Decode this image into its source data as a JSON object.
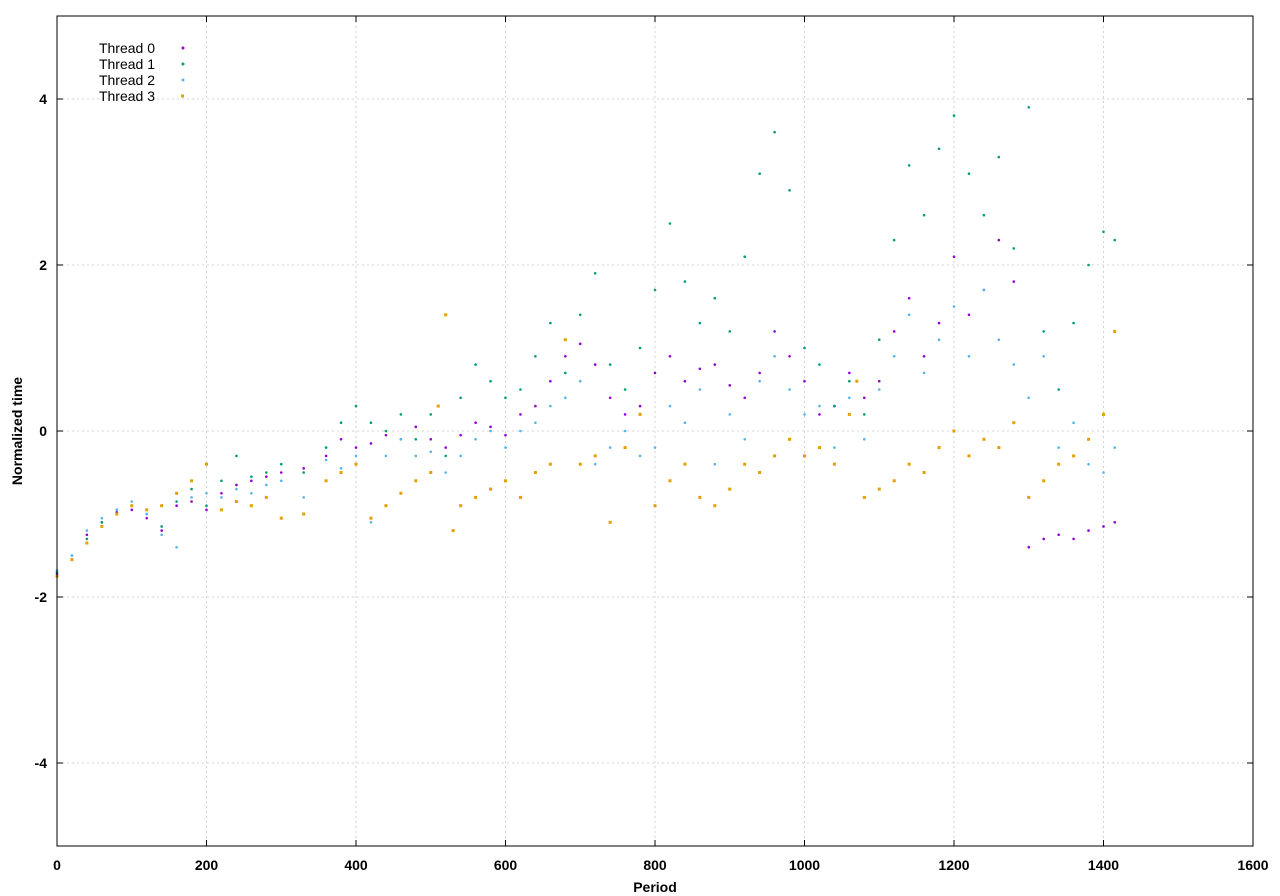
{
  "chart_data": {
    "type": "scatter",
    "title": "",
    "xlabel": "Period",
    "ylabel": "Normalized time",
    "xlim": [
      0,
      1600
    ],
    "ylim": [
      -5,
      5
    ],
    "x_ticks": [
      0,
      200,
      400,
      600,
      800,
      1000,
      1200,
      1400,
      1600
    ],
    "y_ticks": [
      -4,
      -2,
      0,
      2,
      4
    ],
    "grid": true,
    "legend_position": "top-left",
    "series": [
      {
        "name": "Thread 0",
        "color": "#9400d3",
        "marker": "dot",
        "points": [
          [
            0,
            -1.72
          ],
          [
            20,
            -1.55
          ],
          [
            40,
            -1.25
          ],
          [
            60,
            -1.1
          ],
          [
            80,
            -0.98
          ],
          [
            100,
            -0.95
          ],
          [
            120,
            -1.05
          ],
          [
            140,
            -1.2
          ],
          [
            160,
            -0.9
          ],
          [
            180,
            -0.85
          ],
          [
            200,
            -0.95
          ],
          [
            220,
            -0.75
          ],
          [
            240,
            -0.65
          ],
          [
            260,
            -0.6
          ],
          [
            280,
            -0.55
          ],
          [
            300,
            -0.5
          ],
          [
            330,
            -0.45
          ],
          [
            360,
            -0.3
          ],
          [
            380,
            -0.1
          ],
          [
            400,
            -0.2
          ],
          [
            420,
            -0.15
          ],
          [
            440,
            -0.05
          ],
          [
            460,
            -0.1
          ],
          [
            480,
            0.05
          ],
          [
            500,
            -0.1
          ],
          [
            520,
            -0.2
          ],
          [
            540,
            -0.05
          ],
          [
            560,
            0.1
          ],
          [
            580,
            0.05
          ],
          [
            600,
            -0.05
          ],
          [
            620,
            0.2
          ],
          [
            640,
            0.3
          ],
          [
            660,
            0.6
          ],
          [
            680,
            0.9
          ],
          [
            700,
            1.05
          ],
          [
            720,
            0.8
          ],
          [
            740,
            0.4
          ],
          [
            760,
            0.2
          ],
          [
            780,
            0.3
          ],
          [
            800,
            0.7
          ],
          [
            820,
            0.9
          ],
          [
            840,
            0.6
          ],
          [
            860,
            0.75
          ],
          [
            880,
            0.8
          ],
          [
            900,
            0.55
          ],
          [
            920,
            0.4
          ],
          [
            940,
            0.7
          ],
          [
            960,
            1.2
          ],
          [
            980,
            0.9
          ],
          [
            1000,
            0.6
          ],
          [
            1020,
            0.2
          ],
          [
            1040,
            0.3
          ],
          [
            1060,
            0.7
          ],
          [
            1080,
            0.4
          ],
          [
            1100,
            0.6
          ],
          [
            1120,
            1.2
          ],
          [
            1140,
            1.6
          ],
          [
            1160,
            0.9
          ],
          [
            1180,
            1.3
          ],
          [
            1200,
            2.1
          ],
          [
            1220,
            1.4
          ],
          [
            1240,
            1.7
          ],
          [
            1260,
            2.3
          ],
          [
            1280,
            1.8
          ],
          [
            1300,
            -1.4
          ],
          [
            1320,
            -1.3
          ],
          [
            1340,
            -1.25
          ],
          [
            1360,
            -1.3
          ],
          [
            1380,
            -1.2
          ],
          [
            1400,
            -1.15
          ],
          [
            1415,
            -1.1
          ]
        ]
      },
      {
        "name": "Thread 1",
        "color": "#009e73",
        "marker": "dot",
        "points": [
          [
            0,
            -1.7
          ],
          [
            20,
            -1.5
          ],
          [
            40,
            -1.3
          ],
          [
            60,
            -1.1
          ],
          [
            80,
            -0.95
          ],
          [
            100,
            -0.9
          ],
          [
            120,
            -1.0
          ],
          [
            140,
            -1.15
          ],
          [
            160,
            -0.85
          ],
          [
            180,
            -0.7
          ],
          [
            200,
            -0.9
          ],
          [
            220,
            -0.6
          ],
          [
            240,
            -0.3
          ],
          [
            260,
            -0.55
          ],
          [
            280,
            -0.5
          ],
          [
            300,
            -0.4
          ],
          [
            330,
            -0.5
          ],
          [
            360,
            -0.2
          ],
          [
            380,
            0.1
          ],
          [
            400,
            0.3
          ],
          [
            420,
            0.1
          ],
          [
            440,
            0.0
          ],
          [
            460,
            0.2
          ],
          [
            480,
            -0.1
          ],
          [
            500,
            0.2
          ],
          [
            520,
            -0.3
          ],
          [
            540,
            0.4
          ],
          [
            560,
            0.8
          ],
          [
            580,
            0.6
          ],
          [
            600,
            0.4
          ],
          [
            620,
            0.5
          ],
          [
            640,
            0.9
          ],
          [
            660,
            1.3
          ],
          [
            680,
            0.7
          ],
          [
            700,
            1.4
          ],
          [
            720,
            1.9
          ],
          [
            740,
            0.8
          ],
          [
            760,
            0.5
          ],
          [
            780,
            1.0
          ],
          [
            800,
            1.7
          ],
          [
            820,
            2.5
          ],
          [
            840,
            1.8
          ],
          [
            860,
            1.3
          ],
          [
            880,
            1.6
          ],
          [
            900,
            1.2
          ],
          [
            920,
            2.1
          ],
          [
            940,
            3.1
          ],
          [
            960,
            3.6
          ],
          [
            980,
            2.9
          ],
          [
            1000,
            1.0
          ],
          [
            1020,
            0.8
          ],
          [
            1040,
            0.3
          ],
          [
            1060,
            0.6
          ],
          [
            1080,
            0.2
          ],
          [
            1100,
            1.1
          ],
          [
            1120,
            2.3
          ],
          [
            1140,
            3.2
          ],
          [
            1160,
            2.6
          ],
          [
            1180,
            3.4
          ],
          [
            1200,
            3.8
          ],
          [
            1220,
            3.1
          ],
          [
            1240,
            2.6
          ],
          [
            1260,
            3.3
          ],
          [
            1280,
            2.2
          ],
          [
            1300,
            3.9
          ],
          [
            1320,
            1.2
          ],
          [
            1340,
            0.5
          ],
          [
            1360,
            1.3
          ],
          [
            1380,
            2.0
          ],
          [
            1400,
            2.4
          ],
          [
            1415,
            2.3
          ]
        ]
      },
      {
        "name": "Thread 2",
        "color": "#56b4e9",
        "marker": "dot",
        "points": [
          [
            0,
            -1.68
          ],
          [
            20,
            -1.5
          ],
          [
            40,
            -1.2
          ],
          [
            60,
            -1.05
          ],
          [
            80,
            -0.95
          ],
          [
            100,
            -0.85
          ],
          [
            120,
            -1.0
          ],
          [
            140,
            -1.25
          ],
          [
            160,
            -1.4
          ],
          [
            180,
            -0.8
          ],
          [
            200,
            -0.75
          ],
          [
            220,
            -0.8
          ],
          [
            240,
            -0.7
          ],
          [
            260,
            -0.75
          ],
          [
            280,
            -0.65
          ],
          [
            300,
            -0.6
          ],
          [
            330,
            -0.8
          ],
          [
            360,
            -0.35
          ],
          [
            380,
            -0.45
          ],
          [
            400,
            -0.3
          ],
          [
            420,
            -1.1
          ],
          [
            440,
            -0.3
          ],
          [
            460,
            -0.1
          ],
          [
            480,
            -0.3
          ],
          [
            500,
            -0.25
          ],
          [
            520,
            -0.5
          ],
          [
            540,
            -0.3
          ],
          [
            560,
            -0.1
          ],
          [
            580,
            0.0
          ],
          [
            600,
            -0.2
          ],
          [
            620,
            0.0
          ],
          [
            640,
            0.1
          ],
          [
            660,
            0.3
          ],
          [
            680,
            0.4
          ],
          [
            700,
            0.6
          ],
          [
            720,
            -0.4
          ],
          [
            740,
            -0.2
          ],
          [
            760,
            0.0
          ],
          [
            780,
            -0.3
          ],
          [
            800,
            -0.2
          ],
          [
            820,
            0.3
          ],
          [
            840,
            0.1
          ],
          [
            860,
            0.5
          ],
          [
            880,
            -0.4
          ],
          [
            900,
            0.2
          ],
          [
            920,
            -0.1
          ],
          [
            940,
            0.6
          ],
          [
            960,
            0.9
          ],
          [
            980,
            0.5
          ],
          [
            1000,
            0.2
          ],
          [
            1020,
            0.3
          ],
          [
            1040,
            -0.2
          ],
          [
            1060,
            0.4
          ],
          [
            1080,
            -0.1
          ],
          [
            1100,
            0.5
          ],
          [
            1120,
            0.9
          ],
          [
            1140,
            1.4
          ],
          [
            1160,
            0.7
          ],
          [
            1180,
            1.1
          ],
          [
            1200,
            1.5
          ],
          [
            1220,
            0.9
          ],
          [
            1240,
            1.7
          ],
          [
            1260,
            1.1
          ],
          [
            1280,
            0.8
          ],
          [
            1300,
            0.4
          ],
          [
            1320,
            0.9
          ],
          [
            1340,
            -0.2
          ],
          [
            1360,
            0.1
          ],
          [
            1380,
            -0.4
          ],
          [
            1400,
            -0.5
          ],
          [
            1415,
            -0.2
          ]
        ]
      },
      {
        "name": "Thread 3",
        "color": "#e69f00",
        "marker": "square",
        "points": [
          [
            0,
            -1.75
          ],
          [
            20,
            -1.55
          ],
          [
            40,
            -1.35
          ],
          [
            60,
            -1.15
          ],
          [
            80,
            -1.0
          ],
          [
            100,
            -0.9
          ],
          [
            120,
            -0.95
          ],
          [
            140,
            -0.9
          ],
          [
            160,
            -0.75
          ],
          [
            180,
            -0.6
          ],
          [
            200,
            -0.4
          ],
          [
            220,
            -0.95
          ],
          [
            240,
            -0.85
          ],
          [
            260,
            -0.9
          ],
          [
            280,
            -0.8
          ],
          [
            300,
            -1.05
          ],
          [
            330,
            -1.0
          ],
          [
            360,
            -0.6
          ],
          [
            380,
            -0.5
          ],
          [
            400,
            -0.4
          ],
          [
            420,
            -1.05
          ],
          [
            440,
            -0.9
          ],
          [
            460,
            -0.75
          ],
          [
            480,
            -0.6
          ],
          [
            500,
            -0.5
          ],
          [
            510,
            0.3
          ],
          [
            520,
            1.4
          ],
          [
            530,
            -1.2
          ],
          [
            540,
            -0.9
          ],
          [
            560,
            -0.8
          ],
          [
            580,
            -0.7
          ],
          [
            600,
            -0.6
          ],
          [
            620,
            -0.8
          ],
          [
            640,
            -0.5
          ],
          [
            660,
            -0.4
          ],
          [
            680,
            1.1
          ],
          [
            700,
            -0.4
          ],
          [
            720,
            -0.3
          ],
          [
            740,
            -1.1
          ],
          [
            760,
            -0.2
          ],
          [
            780,
            0.2
          ],
          [
            800,
            -0.9
          ],
          [
            820,
            -0.6
          ],
          [
            840,
            -0.4
          ],
          [
            860,
            -0.8
          ],
          [
            880,
            -0.9
          ],
          [
            900,
            -0.7
          ],
          [
            920,
            -0.4
          ],
          [
            940,
            -0.5
          ],
          [
            960,
            -0.3
          ],
          [
            980,
            -0.1
          ],
          [
            1000,
            -0.3
          ],
          [
            1020,
            -0.2
          ],
          [
            1040,
            -0.4
          ],
          [
            1060,
            0.2
          ],
          [
            1070,
            0.6
          ],
          [
            1080,
            -0.8
          ],
          [
            1100,
            -0.7
          ],
          [
            1120,
            -0.6
          ],
          [
            1140,
            -0.4
          ],
          [
            1160,
            -0.5
          ],
          [
            1180,
            -0.2
          ],
          [
            1200,
            0.0
          ],
          [
            1220,
            -0.3
          ],
          [
            1240,
            -0.1
          ],
          [
            1260,
            -0.2
          ],
          [
            1280,
            0.1
          ],
          [
            1300,
            -0.8
          ],
          [
            1320,
            -0.6
          ],
          [
            1340,
            -0.4
          ],
          [
            1360,
            -0.3
          ],
          [
            1380,
            -0.1
          ],
          [
            1400,
            0.2
          ],
          [
            1415,
            1.2
          ]
        ]
      }
    ]
  }
}
